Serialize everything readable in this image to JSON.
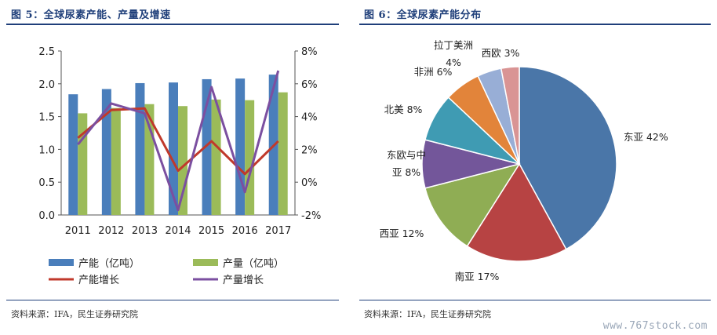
{
  "left": {
    "title": "图 5：全球尿素产能、产量及增速",
    "source": "资料来源：IFA，民生证券研究院"
  },
  "right": {
    "title": "图 6：全球尿素产能分布",
    "source": "资料来源：IFA，民生证券研究院"
  },
  "watermark": "www.767stock.com",
  "chart_data": [
    {
      "type": "bar",
      "title": "",
      "categories": [
        "2011",
        "2012",
        "2013",
        "2014",
        "2015",
        "2016",
        "2017"
      ],
      "ylim": [
        0,
        2.5
      ],
      "yticks": [
        "0.0",
        "0.5",
        "1.0",
        "1.5",
        "2.0",
        "2.5"
      ],
      "y2lim": [
        -2,
        8
      ],
      "y2ticks": [
        "-2%",
        "0%",
        "2%",
        "4%",
        "6%",
        "8%"
      ],
      "legend_position": "bottom",
      "series": [
        {
          "name": "产能（亿吨）",
          "kind": "bar",
          "axis": "left",
          "color": "#4a7ebb",
          "values": [
            1.84,
            1.92,
            2.01,
            2.02,
            2.07,
            2.08,
            2.14
          ]
        },
        {
          "name": "产量（亿吨）",
          "kind": "bar",
          "axis": "left",
          "color": "#9bbb59",
          "values": [
            1.55,
            1.63,
            1.69,
            1.66,
            1.76,
            1.75,
            1.87
          ]
        },
        {
          "name": "产能增长",
          "kind": "line",
          "axis": "right",
          "color": "#c0392b",
          "values": [
            2.7,
            4.4,
            4.5,
            0.7,
            2.5,
            0.5,
            2.5
          ]
        },
        {
          "name": "产量增长",
          "kind": "line",
          "axis": "right",
          "color": "#7b4fa0",
          "values": [
            2.3,
            4.8,
            4.2,
            -1.7,
            5.8,
            -0.6,
            6.8
          ]
        }
      ]
    },
    {
      "type": "pie",
      "title": "",
      "slices": [
        {
          "name": "东亚",
          "label": "东亚  42%",
          "value": 42,
          "color": "#4a76a8"
        },
        {
          "name": "南亚",
          "label": "南亚  17%",
          "value": 17,
          "color": "#b74343"
        },
        {
          "name": "西亚",
          "label": "西亚  12%",
          "value": 12,
          "color": "#8fad54"
        },
        {
          "name": "东欧与中亚",
          "label_lines": [
            "东欧与中",
            "亚  8%"
          ],
          "value": 8,
          "color": "#73569a"
        },
        {
          "name": "北美",
          "label": "北美  8%",
          "value": 8,
          "color": "#3f9bb3"
        },
        {
          "name": "非洲",
          "label": "非洲  6%",
          "value": 6,
          "color": "#e2843a"
        },
        {
          "name": "拉丁美洲",
          "label_lines": [
            "拉丁美洲",
            "4%"
          ],
          "value": 4,
          "color": "#98aed6"
        },
        {
          "name": "西欧",
          "label": "西欧  3%",
          "value": 3,
          "color": "#d99494"
        }
      ]
    }
  ]
}
